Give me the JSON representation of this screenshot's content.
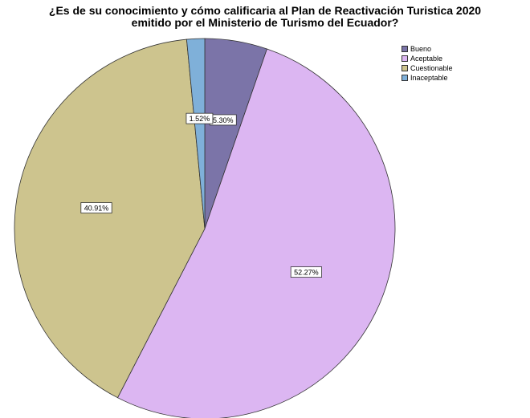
{
  "chart_data": {
    "type": "pie",
    "title_lines": [
      "¿Es de su conocimiento y cómo calificaria al Plan de Reactivación Turistica 2020",
      "emitido por el Ministerio de Turismo del Ecuador?"
    ],
    "categories": [
      "Bueno",
      "Aceptable",
      "Cuestionable",
      "Inaceptable"
    ],
    "values": [
      5.3,
      52.27,
      40.91,
      1.52
    ],
    "data_labels": [
      "5.30%",
      "52.27%",
      "40.91%",
      "1.52%"
    ],
    "colors": [
      "#7b74a8",
      "#dcb6f2",
      "#cdc48e",
      "#7fb0d9"
    ],
    "start_angle_deg": 0,
    "direction": "clockwise",
    "legend_position": "top-right"
  }
}
